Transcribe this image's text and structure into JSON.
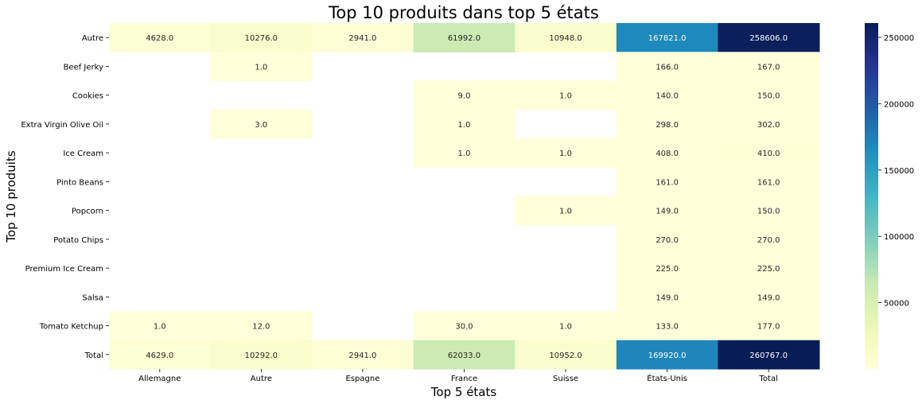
{
  "chart_data": {
    "type": "heatmap",
    "title": "Top 10 produits dans top 5 états",
    "xlabel": "Top 5 états",
    "ylabel": "Top 10 produits",
    "x_categories": [
      "Allemagne",
      "Autre",
      "Espagne",
      "France",
      "Suisse",
      "États-Unis",
      "Total"
    ],
    "y_categories": [
      "Autre",
      "Beef Jerky",
      "Cookies",
      "Extra Virgin Olive Oil",
      "Ice Cream",
      "Pinto Beans",
      "Popcorn",
      "Potato Chips",
      "Premium Ice Cream",
      "Salsa",
      "Tomato Ketchup",
      "Total"
    ],
    "values": [
      [
        4628.0,
        10276.0,
        2941.0,
        61992.0,
        10948.0,
        167821.0,
        258606.0
      ],
      [
        null,
        1.0,
        null,
        null,
        null,
        166.0,
        167.0
      ],
      [
        null,
        null,
        null,
        9.0,
        1.0,
        140.0,
        150.0
      ],
      [
        null,
        3.0,
        null,
        1.0,
        null,
        298.0,
        302.0
      ],
      [
        null,
        null,
        null,
        1.0,
        1.0,
        408.0,
        410.0
      ],
      [
        null,
        null,
        null,
        null,
        null,
        161.0,
        161.0
      ],
      [
        null,
        null,
        null,
        null,
        1.0,
        149.0,
        150.0
      ],
      [
        null,
        null,
        null,
        null,
        null,
        270.0,
        270.0
      ],
      [
        null,
        null,
        null,
        null,
        null,
        225.0,
        225.0
      ],
      [
        null,
        null,
        null,
        null,
        null,
        149.0,
        149.0
      ],
      [
        1.0,
        12.0,
        null,
        30.0,
        1.0,
        133.0,
        177.0
      ],
      [
        4629.0,
        10292.0,
        2941.0,
        62033.0,
        10952.0,
        169920.0,
        260767.0
      ]
    ],
    "colormap": "YlGnBu",
    "color_range": [
      1,
      260767
    ],
    "colorbar_ticks": [
      50000,
      100000,
      150000,
      200000,
      250000
    ],
    "colorbar_tick_labels": [
      "50000",
      "100000",
      "150000",
      "200000",
      "250000"
    ],
    "annotations": true,
    "grid": false
  }
}
